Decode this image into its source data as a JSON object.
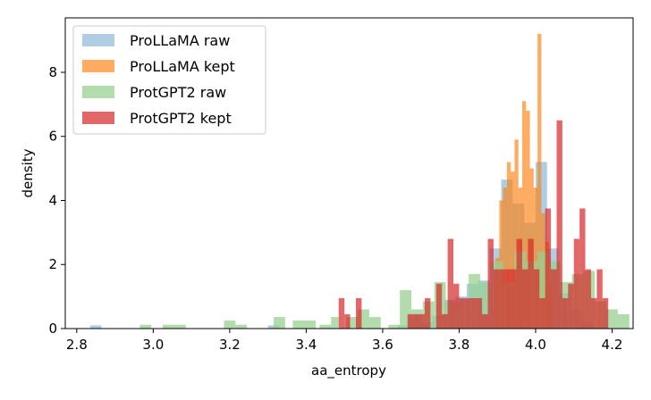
{
  "chart_data": {
    "type": "histogram",
    "title": "",
    "xlabel": "aa_entropy",
    "ylabel": "density",
    "xlim": [
      2.77,
      4.255
    ],
    "ylim": [
      0,
      9.7
    ],
    "xticks": [
      "2.8",
      "3.0",
      "3.2",
      "3.4",
      "3.6",
      "3.8",
      "4.0",
      "4.2"
    ],
    "yticks": [
      "0",
      "2",
      "4",
      "6",
      "8"
    ],
    "legend_position": "top-left",
    "grid": false,
    "series": [
      {
        "name": "ProLLaMA raw",
        "color": "#a6c8e0",
        "opacity": 0.9,
        "bins": [
          {
            "x0": 2.835,
            "x1": 2.865,
            "y": 0.1
          },
          {
            "x0": 3.3,
            "x1": 3.33,
            "y": 0.1
          },
          {
            "x0": 3.64,
            "x1": 3.67,
            "y": 0.1
          },
          {
            "x0": 3.67,
            "x1": 3.7,
            "y": 0.4
          },
          {
            "x0": 3.7,
            "x1": 3.73,
            "y": 0.2
          },
          {
            "x0": 3.73,
            "x1": 3.76,
            "y": 0.4
          },
          {
            "x0": 3.76,
            "x1": 3.79,
            "y": 0.9
          },
          {
            "x0": 3.79,
            "x1": 3.82,
            "y": 1.0
          },
          {
            "x0": 3.82,
            "x1": 3.85,
            "y": 1.4
          },
          {
            "x0": 3.85,
            "x1": 3.88,
            "y": 1.5
          },
          {
            "x0": 3.88,
            "x1": 3.91,
            "y": 2.5
          },
          {
            "x0": 3.91,
            "x1": 3.94,
            "y": 4.65
          },
          {
            "x0": 3.94,
            "x1": 3.97,
            "y": 3.9
          },
          {
            "x0": 3.97,
            "x1": 4.0,
            "y": 3.3
          },
          {
            "x0": 4.0,
            "x1": 4.03,
            "y": 5.2
          },
          {
            "x0": 4.03,
            "x1": 4.06,
            "y": 2.5
          },
          {
            "x0": 4.06,
            "x1": 4.09,
            "y": 1.1
          },
          {
            "x0": 4.09,
            "x1": 4.12,
            "y": 0.6
          },
          {
            "x0": 4.12,
            "x1": 4.15,
            "y": 0.2
          }
        ]
      },
      {
        "name": "ProLLaMA kept",
        "color": "#ff7f0e",
        "opacity": 0.65,
        "bins": [
          {
            "x0": 3.895,
            "x1": 3.905,
            "y": 2.2
          },
          {
            "x0": 3.905,
            "x1": 3.915,
            "y": 4.0
          },
          {
            "x0": 3.915,
            "x1": 3.925,
            "y": 4.4
          },
          {
            "x0": 3.925,
            "x1": 3.935,
            "y": 5.2
          },
          {
            "x0": 3.935,
            "x1": 3.945,
            "y": 4.9
          },
          {
            "x0": 3.945,
            "x1": 3.955,
            "y": 5.9
          },
          {
            "x0": 3.955,
            "x1": 3.965,
            "y": 4.4
          },
          {
            "x0": 3.965,
            "x1": 3.975,
            "y": 7.1
          },
          {
            "x0": 3.975,
            "x1": 3.985,
            "y": 6.8
          },
          {
            "x0": 3.985,
            "x1": 3.995,
            "y": 5.0
          },
          {
            "x0": 3.995,
            "x1": 4.005,
            "y": 4.4
          },
          {
            "x0": 4.005,
            "x1": 4.015,
            "y": 9.2
          },
          {
            "x0": 4.015,
            "x1": 4.025,
            "y": 3.6
          },
          {
            "x0": 4.025,
            "x1": 4.035,
            "y": 2.7
          },
          {
            "x0": 4.035,
            "x1": 4.045,
            "y": 1.4
          }
        ]
      },
      {
        "name": "ProtGPT2 raw",
        "color": "#98d090",
        "opacity": 0.75,
        "bins": [
          {
            "x0": 2.965,
            "x1": 2.995,
            "y": 0.12
          },
          {
            "x0": 3.025,
            "x1": 3.085,
            "y": 0.12
          },
          {
            "x0": 3.185,
            "x1": 3.215,
            "y": 0.25
          },
          {
            "x0": 3.215,
            "x1": 3.245,
            "y": 0.12
          },
          {
            "x0": 3.315,
            "x1": 3.345,
            "y": 0.36
          },
          {
            "x0": 3.365,
            "x1": 3.425,
            "y": 0.25
          },
          {
            "x0": 3.435,
            "x1": 3.465,
            "y": 0.12
          },
          {
            "x0": 3.465,
            "x1": 3.485,
            "y": 0.36
          },
          {
            "x0": 3.505,
            "x1": 3.535,
            "y": 0.36
          },
          {
            "x0": 3.535,
            "x1": 3.565,
            "y": 0.6
          },
          {
            "x0": 3.565,
            "x1": 3.595,
            "y": 0.36
          },
          {
            "x0": 3.615,
            "x1": 3.645,
            "y": 0.12
          },
          {
            "x0": 3.645,
            "x1": 3.675,
            "y": 1.2
          },
          {
            "x0": 3.675,
            "x1": 3.705,
            "y": 0.6
          },
          {
            "x0": 3.705,
            "x1": 3.735,
            "y": 0.85
          },
          {
            "x0": 3.735,
            "x1": 3.765,
            "y": 1.45
          },
          {
            "x0": 3.765,
            "x1": 3.795,
            "y": 0.85
          },
          {
            "x0": 3.795,
            "x1": 3.825,
            "y": 0.85
          },
          {
            "x0": 3.825,
            "x1": 3.855,
            "y": 1.7
          },
          {
            "x0": 3.855,
            "x1": 3.885,
            "y": 1.45
          },
          {
            "x0": 3.885,
            "x1": 3.915,
            "y": 2.1
          },
          {
            "x0": 3.915,
            "x1": 3.945,
            "y": 1.45
          },
          {
            "x0": 3.945,
            "x1": 3.975,
            "y": 2.4
          },
          {
            "x0": 3.975,
            "x1": 4.005,
            "y": 2.1
          },
          {
            "x0": 4.005,
            "x1": 4.035,
            "y": 2.4
          },
          {
            "x0": 4.035,
            "x1": 4.065,
            "y": 2.1
          },
          {
            "x0": 4.065,
            "x1": 4.095,
            "y": 1.45
          },
          {
            "x0": 4.095,
            "x1": 4.125,
            "y": 1.7
          },
          {
            "x0": 4.125,
            "x1": 4.155,
            "y": 1.8
          },
          {
            "x0": 4.155,
            "x1": 4.185,
            "y": 0.85
          },
          {
            "x0": 4.185,
            "x1": 4.215,
            "y": 0.6
          },
          {
            "x0": 4.215,
            "x1": 4.245,
            "y": 0.45
          }
        ]
      },
      {
        "name": "ProtGPT2 kept",
        "color": "#d62728",
        "opacity": 0.7,
        "bins": [
          {
            "x0": 3.485,
            "x1": 3.5,
            "y": 0.95
          },
          {
            "x0": 3.5,
            "x1": 3.515,
            "y": 0.45
          },
          {
            "x0": 3.53,
            "x1": 3.545,
            "y": 0.95
          },
          {
            "x0": 3.665,
            "x1": 3.68,
            "y": 0.45
          },
          {
            "x0": 3.68,
            "x1": 3.695,
            "y": 0.45
          },
          {
            "x0": 3.695,
            "x1": 3.71,
            "y": 0.45
          },
          {
            "x0": 3.71,
            "x1": 3.725,
            "y": 0.95
          },
          {
            "x0": 3.74,
            "x1": 3.755,
            "y": 1.4
          },
          {
            "x0": 3.755,
            "x1": 3.77,
            "y": 0.45
          },
          {
            "x0": 3.77,
            "x1": 3.785,
            "y": 2.8
          },
          {
            "x0": 3.785,
            "x1": 3.8,
            "y": 1.4
          },
          {
            "x0": 3.8,
            "x1": 3.815,
            "y": 0.95
          },
          {
            "x0": 3.815,
            "x1": 3.83,
            "y": 0.95
          },
          {
            "x0": 3.83,
            "x1": 3.845,
            "y": 0.95
          },
          {
            "x0": 3.845,
            "x1": 3.86,
            "y": 0.95
          },
          {
            "x0": 3.86,
            "x1": 3.875,
            "y": 0.45
          },
          {
            "x0": 3.875,
            "x1": 3.89,
            "y": 2.8
          },
          {
            "x0": 3.89,
            "x1": 3.905,
            "y": 1.85
          },
          {
            "x0": 3.905,
            "x1": 3.92,
            "y": 1.85
          },
          {
            "x0": 3.92,
            "x1": 3.935,
            "y": 1.85
          },
          {
            "x0": 3.935,
            "x1": 3.95,
            "y": 1.85
          },
          {
            "x0": 3.95,
            "x1": 3.965,
            "y": 2.8
          },
          {
            "x0": 3.965,
            "x1": 3.98,
            "y": 1.85
          },
          {
            "x0": 3.98,
            "x1": 3.995,
            "y": 2.8
          },
          {
            "x0": 3.995,
            "x1": 4.01,
            "y": 1.85
          },
          {
            "x0": 4.01,
            "x1": 4.025,
            "y": 0.95
          },
          {
            "x0": 4.025,
            "x1": 4.04,
            "y": 3.75
          },
          {
            "x0": 4.04,
            "x1": 4.055,
            "y": 1.85
          },
          {
            "x0": 4.055,
            "x1": 4.07,
            "y": 6.5
          },
          {
            "x0": 4.07,
            "x1": 4.085,
            "y": 0.95
          },
          {
            "x0": 4.085,
            "x1": 4.1,
            "y": 1.4
          },
          {
            "x0": 4.1,
            "x1": 4.115,
            "y": 2.8
          },
          {
            "x0": 4.115,
            "x1": 4.13,
            "y": 3.75
          },
          {
            "x0": 4.13,
            "x1": 4.145,
            "y": 1.85
          },
          {
            "x0": 4.145,
            "x1": 4.16,
            "y": 0.95
          },
          {
            "x0": 4.16,
            "x1": 4.175,
            "y": 1.85
          },
          {
            "x0": 4.175,
            "x1": 4.19,
            "y": 0.95
          }
        ]
      }
    ]
  }
}
